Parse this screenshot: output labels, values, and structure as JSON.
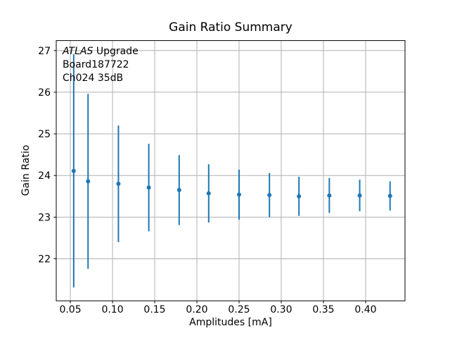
{
  "chart_data": {
    "type": "scatter",
    "error_bars": true,
    "title": "Gain Ratio Summary",
    "xlabel": "Amplitudes [mA]",
    "ylabel": "Gain Ratio",
    "xlim": [
      0.0333,
      0.4467
    ],
    "ylim": [
      20.99,
      27.24
    ],
    "xtick_values": [
      0.05,
      0.1,
      0.15,
      0.2,
      0.25,
      0.3,
      0.35,
      0.4
    ],
    "xtick_labels": [
      "0.05",
      "0.10",
      "0.15",
      "0.20",
      "0.25",
      "0.30",
      "0.35",
      "0.40"
    ],
    "ytick_values": [
      22,
      23,
      24,
      25,
      26,
      27
    ],
    "ytick_labels": [
      "22",
      "23",
      "24",
      "25",
      "26",
      "27"
    ],
    "grid": true,
    "legend": "none",
    "series": [
      {
        "name": "gain-ratio-vs-amplitude",
        "marker": "point",
        "x": [
          0.054,
          0.071,
          0.107,
          0.143,
          0.179,
          0.214,
          0.25,
          0.286,
          0.321,
          0.357,
          0.393,
          0.429
        ],
        "y": [
          24.11,
          23.86,
          23.8,
          23.71,
          23.65,
          23.57,
          23.54,
          23.53,
          23.5,
          23.52,
          23.52,
          23.51
        ],
        "yerr": [
          2.8,
          2.1,
          1.4,
          1.05,
          0.84,
          0.7,
          0.6,
          0.53,
          0.47,
          0.42,
          0.38,
          0.35
        ]
      }
    ],
    "annotation": {
      "line1_italic": "ATLAS",
      "line1_rest": " Upgrade",
      "line2": "Board187722",
      "line3": "Ch024 35dB"
    },
    "colors": {
      "series": "#1f77b4",
      "grid": "#b0b0b0",
      "spine": "#000000",
      "text": "#000000",
      "background": "#ffffff"
    }
  }
}
